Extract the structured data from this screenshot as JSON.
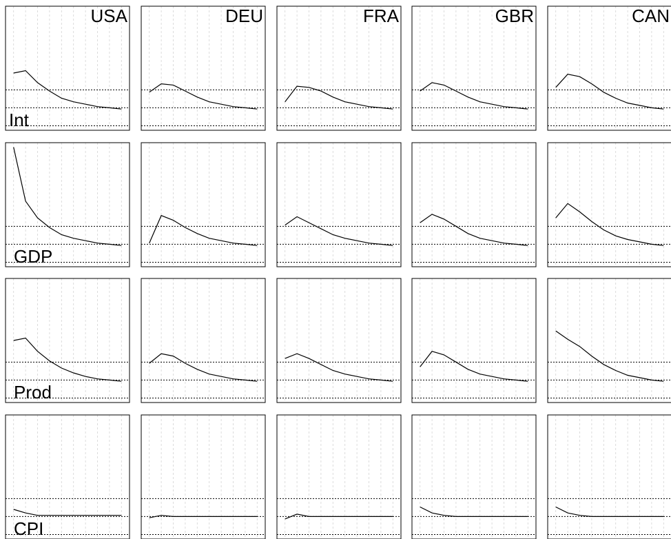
{
  "chart_data": {
    "type": "line",
    "layout": "small-multiples",
    "columns": [
      "USA",
      "DEU",
      "FRA",
      "GBR",
      "CAN"
    ],
    "rows": [
      "Int",
      "GDP",
      "Prod",
      "CPI"
    ],
    "x": [
      1,
      2,
      3,
      4,
      5,
      6,
      7,
      8,
      9,
      10
    ],
    "xlim": [
      0.5,
      10.5
    ],
    "ylim": [
      0,
      1
    ],
    "reference_lines": [
      0.32,
      0.17,
      0.02
    ],
    "grid": true,
    "panels": [
      [
        {
          "values": [
            0.46,
            0.48,
            0.38,
            0.31,
            0.25,
            0.22,
            0.2,
            0.18,
            0.17,
            0.16
          ]
        },
        {
          "values": [
            0.3,
            0.37,
            0.36,
            0.31,
            0.26,
            0.22,
            0.2,
            0.18,
            0.17,
            0.16
          ]
        },
        {
          "values": [
            0.22,
            0.35,
            0.34,
            0.31,
            0.26,
            0.22,
            0.2,
            0.18,
            0.17,
            0.16
          ]
        },
        {
          "values": [
            0.31,
            0.38,
            0.36,
            0.31,
            0.26,
            0.22,
            0.2,
            0.18,
            0.17,
            0.16
          ]
        },
        {
          "values": [
            0.34,
            0.45,
            0.43,
            0.37,
            0.3,
            0.25,
            0.21,
            0.19,
            0.17,
            0.16
          ]
        }
      ],
      [
        {
          "values": [
            0.98,
            0.53,
            0.39,
            0.31,
            0.25,
            0.22,
            0.2,
            0.18,
            0.17,
            0.16
          ]
        },
        {
          "values": [
            0.18,
            0.41,
            0.37,
            0.31,
            0.26,
            0.22,
            0.2,
            0.18,
            0.17,
            0.16
          ]
        },
        {
          "values": [
            0.33,
            0.4,
            0.35,
            0.3,
            0.25,
            0.22,
            0.2,
            0.18,
            0.17,
            0.16
          ]
        },
        {
          "values": [
            0.35,
            0.42,
            0.38,
            0.32,
            0.26,
            0.22,
            0.2,
            0.18,
            0.17,
            0.16
          ]
        },
        {
          "values": [
            0.39,
            0.51,
            0.44,
            0.36,
            0.29,
            0.24,
            0.21,
            0.19,
            0.17,
            0.16
          ]
        }
      ],
      [
        {
          "values": [
            0.5,
            0.52,
            0.41,
            0.33,
            0.27,
            0.23,
            0.2,
            0.18,
            0.17,
            0.16
          ]
        },
        {
          "values": [
            0.31,
            0.39,
            0.37,
            0.31,
            0.26,
            0.22,
            0.2,
            0.18,
            0.17,
            0.16
          ]
        },
        {
          "values": [
            0.35,
            0.39,
            0.35,
            0.3,
            0.25,
            0.22,
            0.2,
            0.18,
            0.17,
            0.16
          ]
        },
        {
          "values": [
            0.28,
            0.41,
            0.38,
            0.32,
            0.26,
            0.22,
            0.2,
            0.18,
            0.17,
            0.16
          ]
        },
        {
          "values": [
            0.58,
            0.51,
            0.45,
            0.37,
            0.3,
            0.25,
            0.21,
            0.19,
            0.17,
            0.16
          ]
        }
      ],
      [
        {
          "values": [
            0.23,
            0.2,
            0.18,
            0.18,
            0.18,
            0.18,
            0.18,
            0.18,
            0.18,
            0.18
          ]
        },
        {
          "values": [
            0.16,
            0.18,
            0.17,
            0.17,
            0.17,
            0.17,
            0.17,
            0.17,
            0.17,
            0.17
          ]
        },
        {
          "values": [
            0.15,
            0.19,
            0.17,
            0.17,
            0.17,
            0.17,
            0.17,
            0.17,
            0.17,
            0.17
          ]
        },
        {
          "values": [
            0.25,
            0.2,
            0.18,
            0.17,
            0.17,
            0.17,
            0.17,
            0.17,
            0.17,
            0.17
          ]
        },
        {
          "values": [
            0.25,
            0.2,
            0.18,
            0.17,
            0.17,
            0.17,
            0.17,
            0.17,
            0.17,
            0.17
          ]
        }
      ]
    ]
  },
  "colors": {
    "line": "#000000",
    "frame": "#000000",
    "grid": "#d3d3d3",
    "reference": "#000000",
    "background": "#ffffff"
  }
}
